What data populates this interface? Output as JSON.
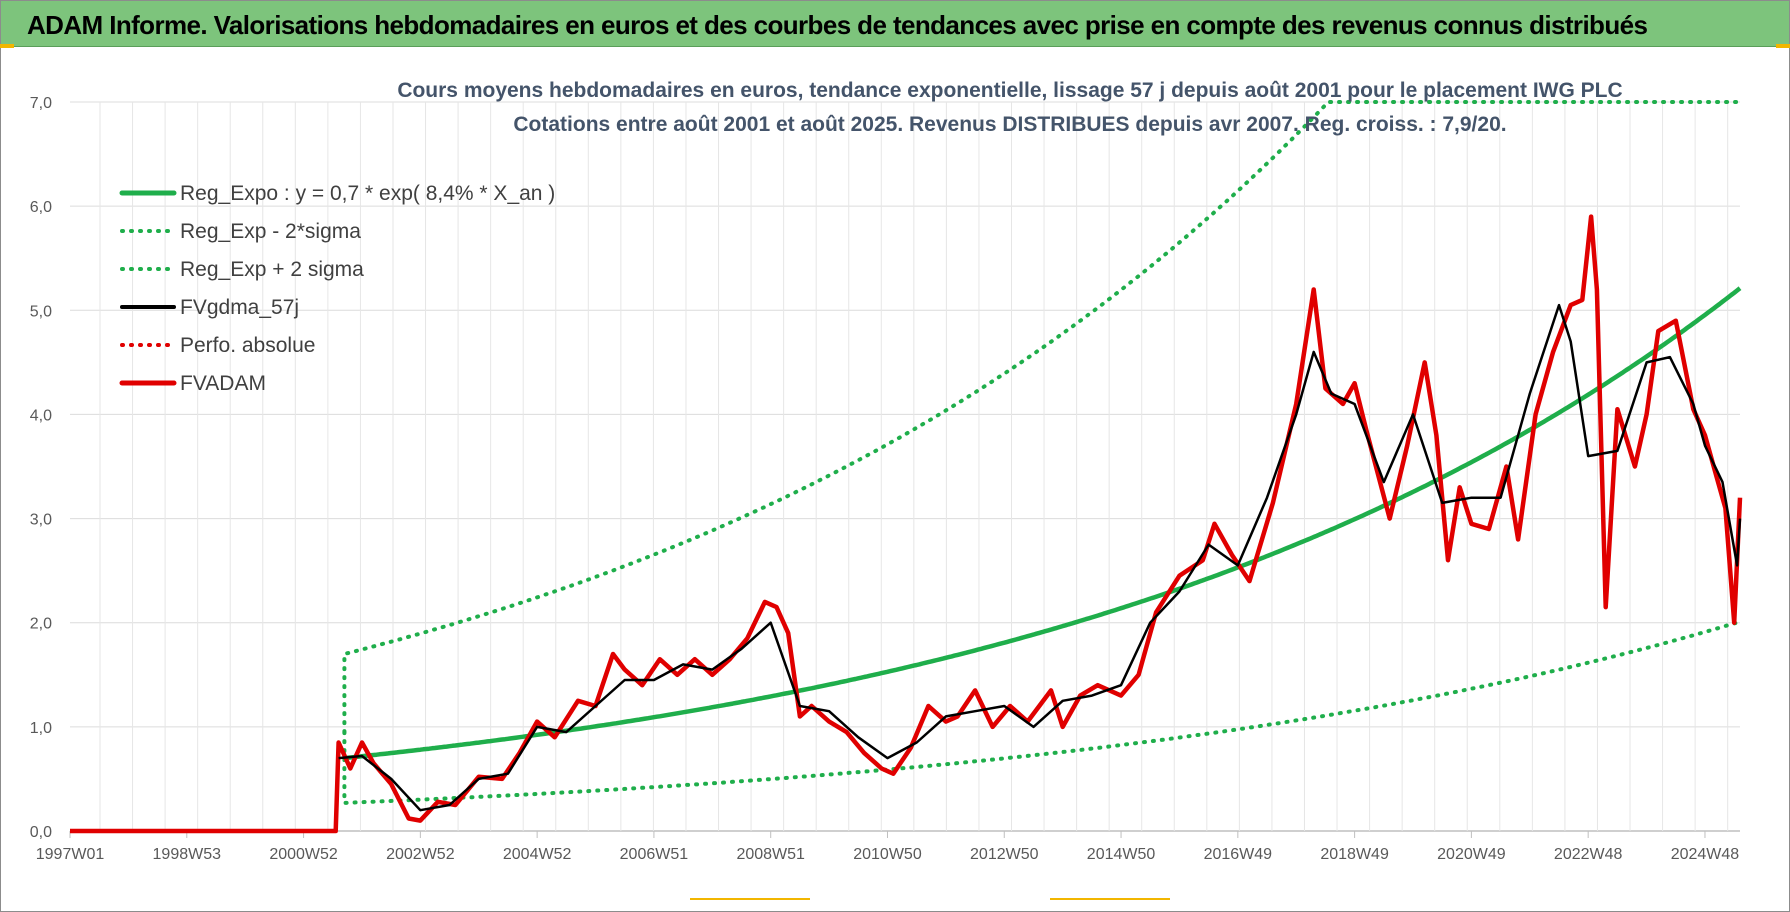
{
  "header": {
    "title": "ADAM Informe. Valorisations hebdomadaires en euros et des courbes de tendances avec prise en compte des revenus connus distribués"
  },
  "colors": {
    "header_bg": "#7dc47c",
    "trend": "#1fae4b",
    "smoothed": "#000000",
    "price": "#e00000",
    "grid": "#dcdcdc"
  },
  "chart_data": {
    "type": "line",
    "title": "Cours moyens hebdomadaires en euros, tendance exponentielle, lissage 57 j depuis août 2001 pour le placement IWG PLC",
    "subtitle": "Cotations entre août 2001 et août 2025. Revenus DISTRIBUES depuis avr 2007. Reg. croiss. : 7,9/20.",
    "xlabel": "",
    "ylabel": "",
    "x_range": [
      1997.0,
      2025.6
    ],
    "ylim": [
      0,
      7
    ],
    "grid": true,
    "legend_position": "top-left",
    "y_ticks": [
      "0,0",
      "1,0",
      "2,0",
      "3,0",
      "4,0",
      "5,0",
      "6,0",
      "7,0"
    ],
    "x_ticks": [
      {
        "label": "1997W01",
        "x": 1997.0
      },
      {
        "label": "1998W53",
        "x": 1999.0
      },
      {
        "label": "2000W52",
        "x": 2001.0
      },
      {
        "label": "2002W52",
        "x": 2003.0
      },
      {
        "label": "2004W52",
        "x": 2005.0
      },
      {
        "label": "2006W51",
        "x": 2007.0
      },
      {
        "label": "2008W51",
        "x": 2009.0
      },
      {
        "label": "2010W50",
        "x": 2011.0
      },
      {
        "label": "2012W50",
        "x": 2013.0
      },
      {
        "label": "2014W50",
        "x": 2015.0
      },
      {
        "label": "2016W49",
        "x": 2017.0
      },
      {
        "label": "2018W49",
        "x": 2019.0
      },
      {
        "label": "2020W49",
        "x": 2021.0
      },
      {
        "label": "2022W48",
        "x": 2023.0
      },
      {
        "label": "2024W48",
        "x": 2025.0
      }
    ],
    "series": [
      {
        "name": "Reg_Expo : y = 0,7 * exp( 8,4% *  X_an )",
        "style": "solid-thick",
        "color": "#1fae4b",
        "x": [
          2001.7,
          2025.6
        ],
        "formula": {
          "a": 0.7,
          "rate": 0.084,
          "start": 2001.7
        }
      },
      {
        "name": "Reg_Exp - 2*sigma",
        "style": "dotted",
        "color": "#1fae4b",
        "x": [
          2001.7,
          2025.6
        ],
        "formula": {
          "a": 0.27,
          "rate": 0.084,
          "start": 2001.7
        }
      },
      {
        "name": "Reg_Exp + 2 sigma",
        "style": "dotted",
        "color": "#1fae4b",
        "x": [
          2001.7,
          2025.6
        ],
        "formula": {
          "a": 1.7,
          "rate": 0.084,
          "start": 2001.7
        },
        "cap": 7.0
      },
      {
        "name": "FVgdma_57j",
        "style": "solid",
        "color": "#000000",
        "points": [
          [
            2001.6,
            0.7
          ],
          [
            2002.0,
            0.72
          ],
          [
            2002.5,
            0.5
          ],
          [
            2003.0,
            0.2
          ],
          [
            2003.5,
            0.25
          ],
          [
            2004.0,
            0.5
          ],
          [
            2004.5,
            0.55
          ],
          [
            2005.0,
            1.0
          ],
          [
            2005.5,
            0.95
          ],
          [
            2006.0,
            1.2
          ],
          [
            2006.5,
            1.45
          ],
          [
            2007.0,
            1.45
          ],
          [
            2007.5,
            1.6
          ],
          [
            2008.0,
            1.55
          ],
          [
            2008.5,
            1.75
          ],
          [
            2009.0,
            2.0
          ],
          [
            2009.5,
            1.2
          ],
          [
            2010.0,
            1.15
          ],
          [
            2010.5,
            0.9
          ],
          [
            2011.0,
            0.7
          ],
          [
            2011.5,
            0.85
          ],
          [
            2012.0,
            1.1
          ],
          [
            2012.5,
            1.15
          ],
          [
            2013.0,
            1.2
          ],
          [
            2013.5,
            1.0
          ],
          [
            2014.0,
            1.25
          ],
          [
            2014.5,
            1.3
          ],
          [
            2015.0,
            1.4
          ],
          [
            2015.5,
            2.0
          ],
          [
            2016.0,
            2.3
          ],
          [
            2016.5,
            2.75
          ],
          [
            2017.0,
            2.55
          ],
          [
            2017.5,
            3.2
          ],
          [
            2018.0,
            4.0
          ],
          [
            2018.3,
            4.6
          ],
          [
            2018.6,
            4.2
          ],
          [
            2019.0,
            4.1
          ],
          [
            2019.5,
            3.35
          ],
          [
            2020.0,
            4.0
          ],
          [
            2020.5,
            3.15
          ],
          [
            2021.0,
            3.2
          ],
          [
            2021.5,
            3.2
          ],
          [
            2022.0,
            4.2
          ],
          [
            2022.5,
            5.05
          ],
          [
            2022.7,
            4.7
          ],
          [
            2023.0,
            3.6
          ],
          [
            2023.5,
            3.65
          ],
          [
            2024.0,
            4.5
          ],
          [
            2024.4,
            4.55
          ],
          [
            2024.8,
            4.1
          ],
          [
            2025.0,
            3.7
          ],
          [
            2025.3,
            3.35
          ],
          [
            2025.55,
            2.55
          ],
          [
            2025.6,
            3.0
          ]
        ]
      },
      {
        "name": "Perfo. absolue",
        "style": "dotted",
        "color": "#e00000",
        "points": []
      },
      {
        "name": "FVADAM",
        "style": "solid-thick",
        "color": "#e00000",
        "points": [
          [
            1997.0,
            0.0
          ],
          [
            2001.55,
            0.0
          ],
          [
            2001.6,
            0.85
          ],
          [
            2001.8,
            0.6
          ],
          [
            2002.0,
            0.85
          ],
          [
            2002.2,
            0.65
          ],
          [
            2002.5,
            0.45
          ],
          [
            2002.8,
            0.12
          ],
          [
            2003.0,
            0.1
          ],
          [
            2003.3,
            0.28
          ],
          [
            2003.6,
            0.25
          ],
          [
            2004.0,
            0.52
          ],
          [
            2004.4,
            0.5
          ],
          [
            2004.7,
            0.75
          ],
          [
            2005.0,
            1.05
          ],
          [
            2005.3,
            0.9
          ],
          [
            2005.7,
            1.25
          ],
          [
            2006.0,
            1.2
          ],
          [
            2006.3,
            1.7
          ],
          [
            2006.5,
            1.55
          ],
          [
            2006.8,
            1.4
          ],
          [
            2007.1,
            1.65
          ],
          [
            2007.4,
            1.5
          ],
          [
            2007.7,
            1.65
          ],
          [
            2008.0,
            1.5
          ],
          [
            2008.3,
            1.65
          ],
          [
            2008.6,
            1.85
          ],
          [
            2008.9,
            2.2
          ],
          [
            2009.1,
            2.15
          ],
          [
            2009.3,
            1.9
          ],
          [
            2009.5,
            1.1
          ],
          [
            2009.7,
            1.2
          ],
          [
            2010.0,
            1.05
          ],
          [
            2010.3,
            0.95
          ],
          [
            2010.6,
            0.75
          ],
          [
            2010.9,
            0.6
          ],
          [
            2011.1,
            0.55
          ],
          [
            2011.4,
            0.8
          ],
          [
            2011.7,
            1.2
          ],
          [
            2012.0,
            1.05
          ],
          [
            2012.2,
            1.1
          ],
          [
            2012.5,
            1.35
          ],
          [
            2012.8,
            1.0
          ],
          [
            2013.1,
            1.2
          ],
          [
            2013.4,
            1.05
          ],
          [
            2013.8,
            1.35
          ],
          [
            2014.0,
            1.0
          ],
          [
            2014.3,
            1.3
          ],
          [
            2014.6,
            1.4
          ],
          [
            2015.0,
            1.3
          ],
          [
            2015.3,
            1.5
          ],
          [
            2015.6,
            2.1
          ],
          [
            2016.0,
            2.45
          ],
          [
            2016.4,
            2.6
          ],
          [
            2016.6,
            2.95
          ],
          [
            2016.9,
            2.65
          ],
          [
            2017.2,
            2.4
          ],
          [
            2017.6,
            3.15
          ],
          [
            2018.0,
            4.1
          ],
          [
            2018.3,
            5.2
          ],
          [
            2018.5,
            4.25
          ],
          [
            2018.8,
            4.1
          ],
          [
            2019.0,
            4.3
          ],
          [
            2019.2,
            3.85
          ],
          [
            2019.6,
            3.0
          ],
          [
            2019.9,
            3.7
          ],
          [
            2020.2,
            4.5
          ],
          [
            2020.4,
            3.8
          ],
          [
            2020.6,
            2.6
          ],
          [
            2020.8,
            3.3
          ],
          [
            2021.0,
            2.95
          ],
          [
            2021.3,
            2.9
          ],
          [
            2021.6,
            3.5
          ],
          [
            2021.8,
            2.8
          ],
          [
            2022.1,
            4.0
          ],
          [
            2022.4,
            4.6
          ],
          [
            2022.7,
            5.05
          ],
          [
            2022.9,
            5.1
          ],
          [
            2023.05,
            5.9
          ],
          [
            2023.15,
            5.2
          ],
          [
            2023.3,
            2.15
          ],
          [
            2023.5,
            4.05
          ],
          [
            2023.8,
            3.5
          ],
          [
            2024.0,
            4.0
          ],
          [
            2024.2,
            4.8
          ],
          [
            2024.5,
            4.9
          ],
          [
            2024.8,
            4.05
          ],
          [
            2025.0,
            3.8
          ],
          [
            2025.2,
            3.4
          ],
          [
            2025.35,
            3.1
          ],
          [
            2025.5,
            2.0
          ],
          [
            2025.6,
            3.2
          ]
        ]
      }
    ]
  }
}
